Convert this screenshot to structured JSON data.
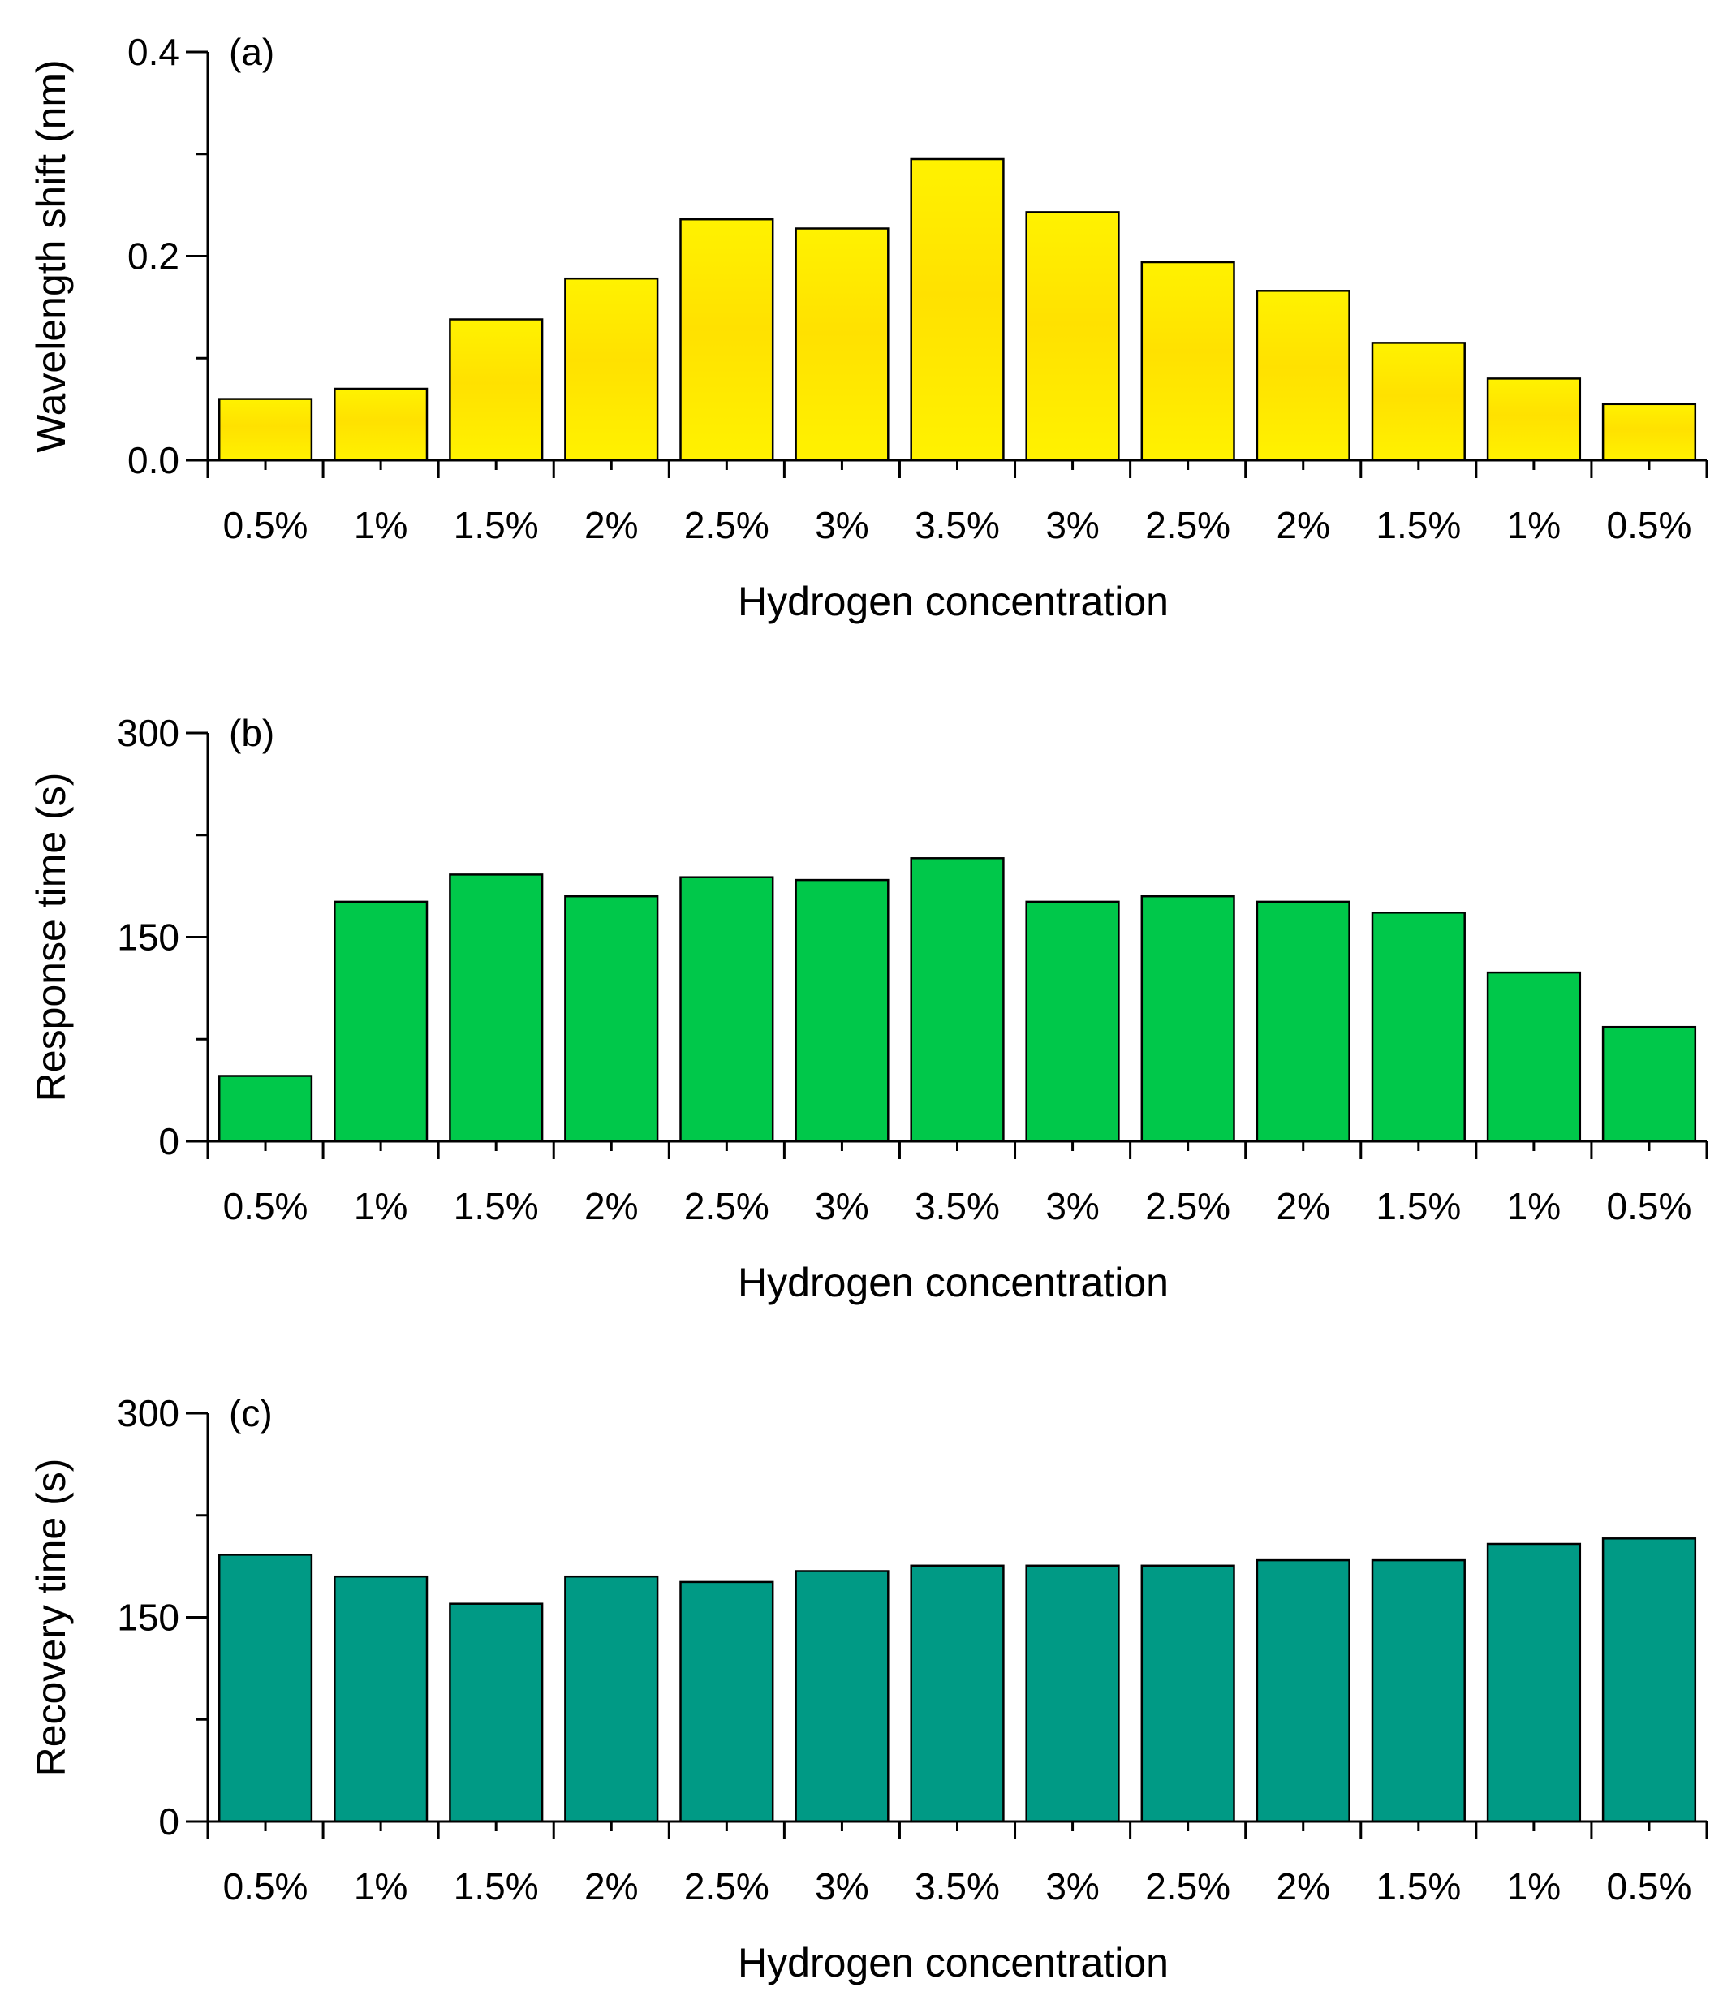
{
  "chart_data": [
    {
      "type": "bar",
      "panel_label": "(a)",
      "xlabel": "Hydrogen concentration",
      "ylabel": "Wavelength shift (nm)",
      "ylim": [
        0,
        0.4
      ],
      "yticks": [
        0.0,
        0.2,
        0.4
      ],
      "ytick_labels": [
        "0.0",
        "0.2",
        "0.4"
      ],
      "categories": [
        "0.5%",
        "1%",
        "1.5%",
        "2%",
        "2.5%",
        "3%",
        "3.5%",
        "3%",
        "2.5%",
        "2%",
        "1.5%",
        "1%",
        "0.5%"
      ],
      "values": [
        0.06,
        0.07,
        0.138,
        0.178,
        0.236,
        0.227,
        0.295,
        0.243,
        0.194,
        0.166,
        0.115,
        0.08,
        0.055
      ],
      "color": "#fff200",
      "color_top": "#ffe100"
    },
    {
      "type": "bar",
      "panel_label": "(b)",
      "xlabel": "Hydrogen concentration",
      "ylabel": "Response time (s)",
      "ylim": [
        0,
        300
      ],
      "yticks": [
        0,
        150,
        300
      ],
      "ytick_labels": [
        "0",
        "150",
        "300"
      ],
      "categories": [
        "0.5%",
        "1%",
        "1.5%",
        "2%",
        "2.5%",
        "3%",
        "3.5%",
        "3%",
        "2.5%",
        "2%",
        "1.5%",
        "1%",
        "0.5%"
      ],
      "values": [
        48,
        176,
        196,
        180,
        194,
        192,
        208,
        176,
        180,
        176,
        168,
        124,
        84
      ],
      "color": "#00c84a"
    },
    {
      "type": "bar",
      "panel_label": "(c)",
      "xlabel": "Hydrogen concentration",
      "ylabel": "Recovery time (s)",
      "ylim": [
        0,
        300
      ],
      "yticks": [
        0,
        150,
        300
      ],
      "ytick_labels": [
        "0",
        "150",
        "300"
      ],
      "categories": [
        "0.5%",
        "1%",
        "1.5%",
        "2%",
        "2.5%",
        "3%",
        "3.5%",
        "3%",
        "2.5%",
        "2%",
        "1.5%",
        "1%",
        "0.5%"
      ],
      "values": [
        196,
        180,
        160,
        180,
        176,
        184,
        188,
        188,
        188,
        192,
        192,
        204,
        208
      ],
      "color": "#009a85"
    }
  ]
}
